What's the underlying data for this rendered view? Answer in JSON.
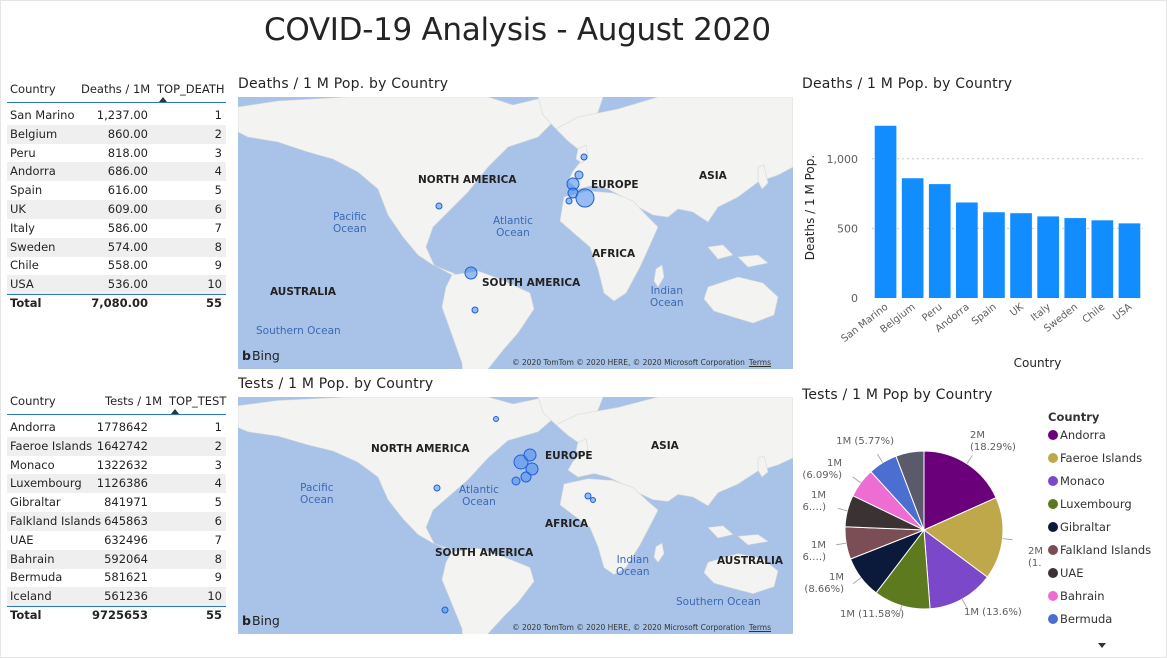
{
  "page_title": "COVID-19 Analysis - August 2020",
  "colors": {
    "bar": "#118dff",
    "bubble": "#4a8ef0",
    "map_water": "#a9c3e8",
    "map_land": "#f3f3f1",
    "ocean_text": "#3a69b4"
  },
  "deaths_table": {
    "headers": [
      "Country",
      "Deaths / 1M",
      "TOP_DEATH"
    ],
    "rows": [
      {
        "country": "San Marino",
        "value": "1,237.00",
        "rank": "1"
      },
      {
        "country": "Belgium",
        "value": "860.00",
        "rank": "2"
      },
      {
        "country": "Peru",
        "value": "818.00",
        "rank": "3"
      },
      {
        "country": "Andorra",
        "value": "686.00",
        "rank": "4"
      },
      {
        "country": "Spain",
        "value": "616.00",
        "rank": "5"
      },
      {
        "country": "UK",
        "value": "609.00",
        "rank": "6"
      },
      {
        "country": "Italy",
        "value": "586.00",
        "rank": "7"
      },
      {
        "country": "Sweden",
        "value": "574.00",
        "rank": "8"
      },
      {
        "country": "Chile",
        "value": "558.00",
        "rank": "9"
      },
      {
        "country": "USA",
        "value": "536.00",
        "rank": "10"
      }
    ],
    "total": {
      "label": "Total",
      "value": "7,080.00",
      "rank": "55"
    }
  },
  "tests_table": {
    "headers": [
      "Country",
      "Tests / 1M",
      "TOP_TEST"
    ],
    "rows": [
      {
        "country": "Andorra",
        "value": "1778642",
        "rank": "1"
      },
      {
        "country": "Faeroe Islands",
        "value": "1642742",
        "rank": "2"
      },
      {
        "country": "Monaco",
        "value": "1322632",
        "rank": "3"
      },
      {
        "country": "Luxembourg",
        "value": "1126386",
        "rank": "4"
      },
      {
        "country": "Gibraltar",
        "value": "841971",
        "rank": "5"
      },
      {
        "country": "Falkland Islands",
        "value": "645863",
        "rank": "6"
      },
      {
        "country": "UAE",
        "value": "632496",
        "rank": "7"
      },
      {
        "country": "Bahrain",
        "value": "592064",
        "rank": "8"
      },
      {
        "country": "Bermuda",
        "value": "581621",
        "rank": "9"
      },
      {
        "country": "Iceland",
        "value": "561236",
        "rank": "10"
      }
    ],
    "total": {
      "label": "Total",
      "value": "9725653",
      "rank": "55"
    }
  },
  "deaths_map": {
    "title": "Deaths / 1 M Pop. by Country",
    "labels": [
      "NORTH AMERICA",
      "EUROPE",
      "ASIA",
      "AFRICA",
      "SOUTH AMERICA",
      "AUSTRALIA"
    ],
    "oceans": [
      "Pacific\nOcean",
      "Atlantic\nOcean",
      "Indian\nOcean",
      "Southern Ocean"
    ],
    "bing": "Bing",
    "copyright": "© 2020 TomTom © 2020 HERE, © 2020 Microsoft Corporation",
    "terms": "Terms"
  },
  "tests_map": {
    "title": "Tests / 1 M Pop. by Country",
    "labels": [
      "NORTH AMERICA",
      "EUROPE",
      "ASIA",
      "AFRICA",
      "SOUTH AMERICA",
      "AUSTRALIA"
    ],
    "oceans": [
      "Pacific\nOcean",
      "Atlantic\nOcean",
      "Indian\nOcean",
      "Southern Ocean"
    ],
    "bing": "Bing",
    "copyright": "© 2020 TomTom © 2020 HERE, © 2020 Microsoft Corporation",
    "terms": "Terms"
  },
  "bar_chart": {
    "title": "Deaths / 1 M Pop. by Country",
    "xlabel": "Country",
    "ylabel": "Deaths / 1 M Pop."
  },
  "pie_chart": {
    "title": "Tests / 1 M Pop by Country",
    "legend_title": "Country"
  },
  "chart_data": [
    {
      "type": "bar",
      "title": "Deaths / 1 M Pop. by Country",
      "xlabel": "Country",
      "ylabel": "Deaths / 1 M Pop.",
      "categories": [
        "San Marino",
        "Belgium",
        "Peru",
        "Andorra",
        "Spain",
        "UK",
        "Italy",
        "Sweden",
        "Chile",
        "USA"
      ],
      "values": [
        1237,
        860,
        818,
        686,
        616,
        609,
        586,
        574,
        558,
        536
      ],
      "ylim": [
        0,
        1300
      ],
      "yticks": [
        0,
        500,
        1000
      ],
      "ytick_labels": [
        "0",
        "500",
        "1,000"
      ],
      "grid": true
    },
    {
      "type": "pie",
      "title": "Tests / 1 M Pop by Country",
      "legend_title": "Country",
      "legend_position": "right",
      "categories": [
        "Andorra",
        "Faeroe Islands",
        "Monaco",
        "Luxembourg",
        "Gibraltar",
        "Falkland Islands",
        "UAE",
        "Bahrain",
        "Bermuda",
        "Iceland"
      ],
      "values": [
        1778642,
        1642742,
        1322632,
        1126386,
        841971,
        645863,
        632496,
        592064,
        581621,
        561236
      ],
      "colors": [
        "#6b007b",
        "#bfa84a",
        "#7b48c9",
        "#5e7a1e",
        "#0b1a3a",
        "#7a4e54",
        "#3a3233",
        "#ee6dd3",
        "#4a6fd0",
        "#5a5a6b"
      ],
      "data_labels": [
        [
          "2M",
          "(18.29%)"
        ],
        [
          "2M",
          "(1…"
        ],
        [
          "1M (13.6%)"
        ],
        [
          "1M (11.58%)"
        ],
        [
          "1M",
          "(8.66%)"
        ],
        [
          "1M",
          "(6.…)"
        ],
        [
          "1M",
          "(6.…)"
        ],
        [
          "1M",
          "(6.09%)"
        ],
        [
          "1M (5.77%)"
        ]
      ]
    }
  ]
}
